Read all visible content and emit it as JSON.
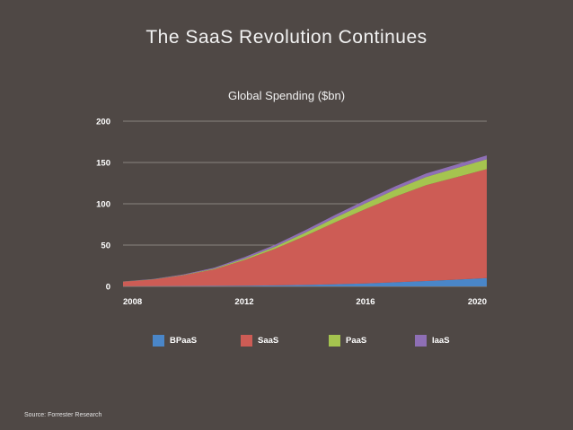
{
  "page": {
    "title": "The SaaS Revolution Continues",
    "source": "Source: Forrester Research"
  },
  "chart_data": {
    "type": "area",
    "stacked": true,
    "title": "Global Spending ($bn)",
    "xlabel": "",
    "ylabel": "",
    "x": [
      2008,
      2009,
      2010,
      2011,
      2012,
      2013,
      2014,
      2015,
      2016,
      2017,
      2018,
      2019,
      2020
    ],
    "xticks": [
      2008,
      2012,
      2016,
      2020
    ],
    "yticks": [
      0,
      50,
      100,
      150,
      200
    ],
    "xlim": [
      2008,
      2020
    ],
    "ylim": [
      0,
      200
    ],
    "grid": true,
    "legend_position": "bottom",
    "series": [
      {
        "name": "BPaaS",
        "color": "#4a86c8",
        "values": [
          0.2,
          0.3,
          0.4,
          0.5,
          0.8,
          1.2,
          1.8,
          2.6,
          3.6,
          5,
          6.5,
          8.2,
          10
        ]
      },
      {
        "name": "SaaS",
        "color": "#cd5c55",
        "values": [
          5.5,
          8,
          13,
          20,
          31,
          44,
          59,
          75,
          90,
          104,
          116,
          124,
          132
        ]
      },
      {
        "name": "PaaS",
        "color": "#a5c44f",
        "values": [
          0.1,
          0.2,
          0.4,
          0.8,
          1.5,
          2.5,
          4,
          5.5,
          7,
          8.5,
          10,
          11,
          12
        ]
      },
      {
        "name": "IaaS",
        "color": "#8e6fb5",
        "values": [
          0.2,
          0.4,
          0.7,
          1.2,
          2,
          2.5,
          3,
          3.4,
          3.8,
          4,
          4.2,
          4.3,
          4.5
        ]
      }
    ]
  }
}
